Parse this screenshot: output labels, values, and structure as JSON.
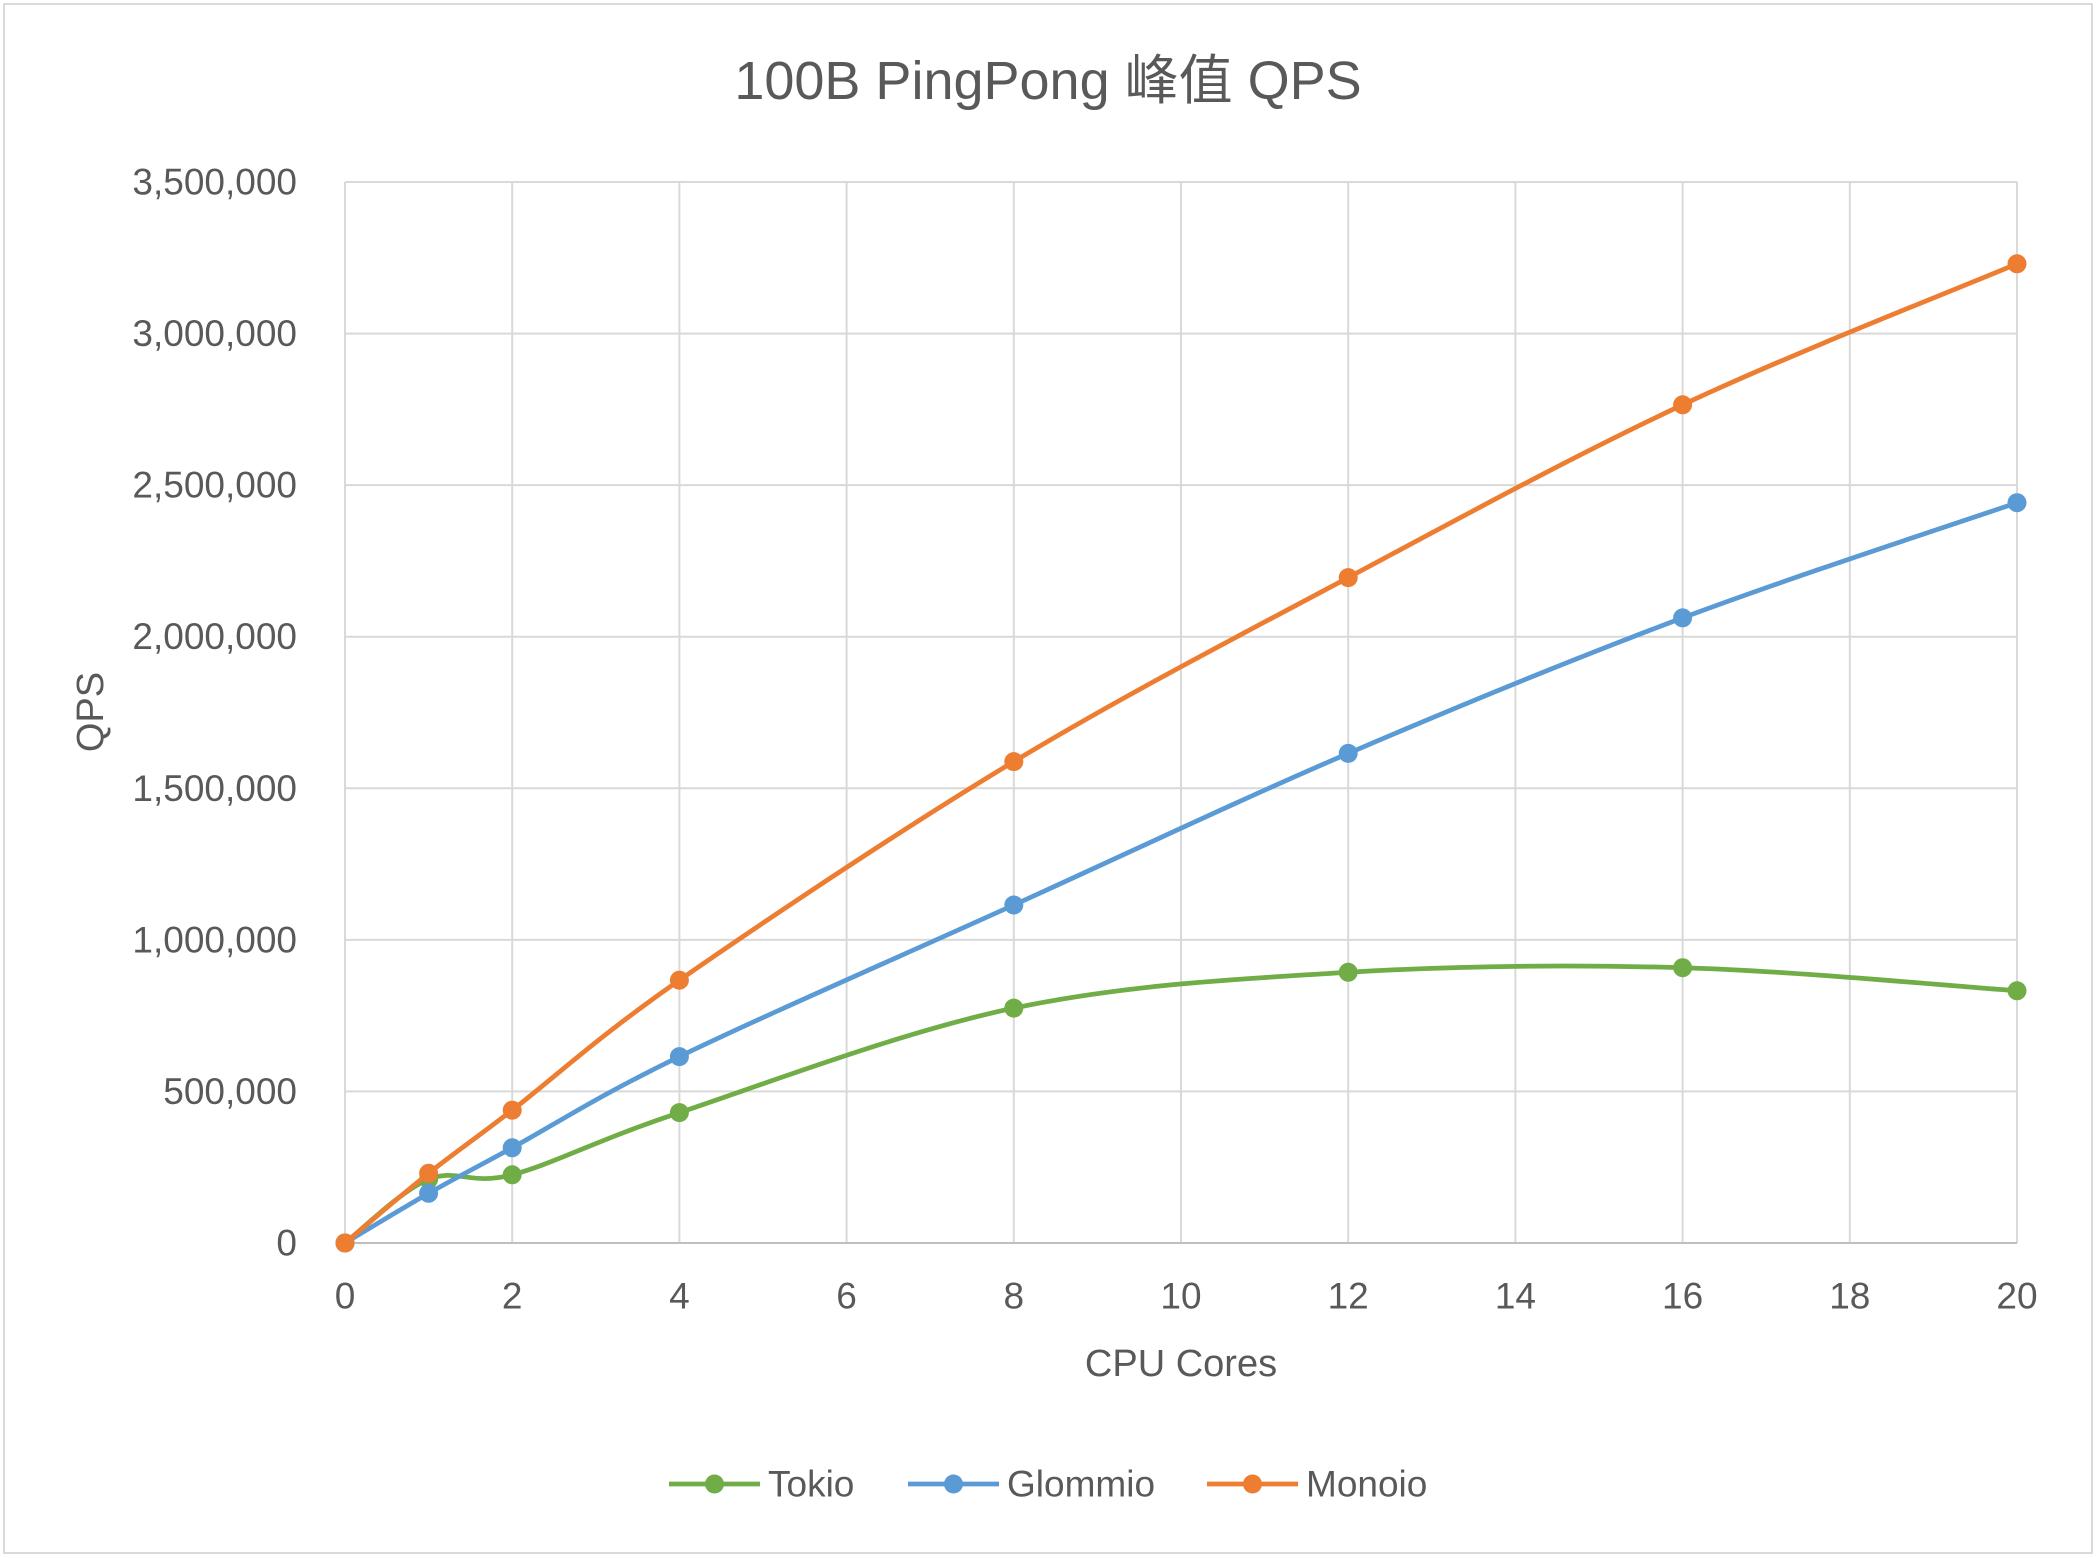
{
  "chart_data": {
    "type": "line",
    "title": "100B PingPong 峰值 QPS",
    "xlabel": "CPU Cores",
    "ylabel": "QPS",
    "xlim": [
      0,
      20
    ],
    "ylim": [
      0,
      3500000
    ],
    "grid": true,
    "smooth": true,
    "legend_position": "bottom",
    "x_ticks": [
      0,
      2,
      4,
      6,
      8,
      10,
      12,
      14,
      16,
      18,
      20
    ],
    "x_tick_labels": [
      "0",
      "2",
      "4",
      "6",
      "8",
      "10",
      "12",
      "14",
      "16",
      "18",
      "20"
    ],
    "y_ticks": [
      0,
      500000,
      1000000,
      1500000,
      2000000,
      2500000,
      3000000,
      3500000
    ],
    "y_tick_labels": [
      "0",
      "500,000",
      "1,000,000",
      "1,500,000",
      "2,000,000",
      "2,500,000",
      "3,000,000",
      "3,500,000"
    ],
    "x": [
      0,
      1,
      2,
      4,
      8,
      12,
      16,
      20
    ],
    "series": [
      {
        "name": "Tokio",
        "color": "#70AD47",
        "values": [
          0,
          210000,
          225000,
          430000,
          775000,
          893000,
          908000,
          832000
        ]
      },
      {
        "name": "Glommio",
        "color": "#5B9BD5",
        "values": [
          0,
          164000,
          314000,
          615000,
          1115000,
          1615000,
          2062000,
          2442000
        ]
      },
      {
        "name": "Monoio",
        "color": "#ED7D31",
        "values": [
          0,
          230000,
          438000,
          867000,
          1588000,
          2195000,
          2765000,
          3230000
        ]
      }
    ]
  }
}
